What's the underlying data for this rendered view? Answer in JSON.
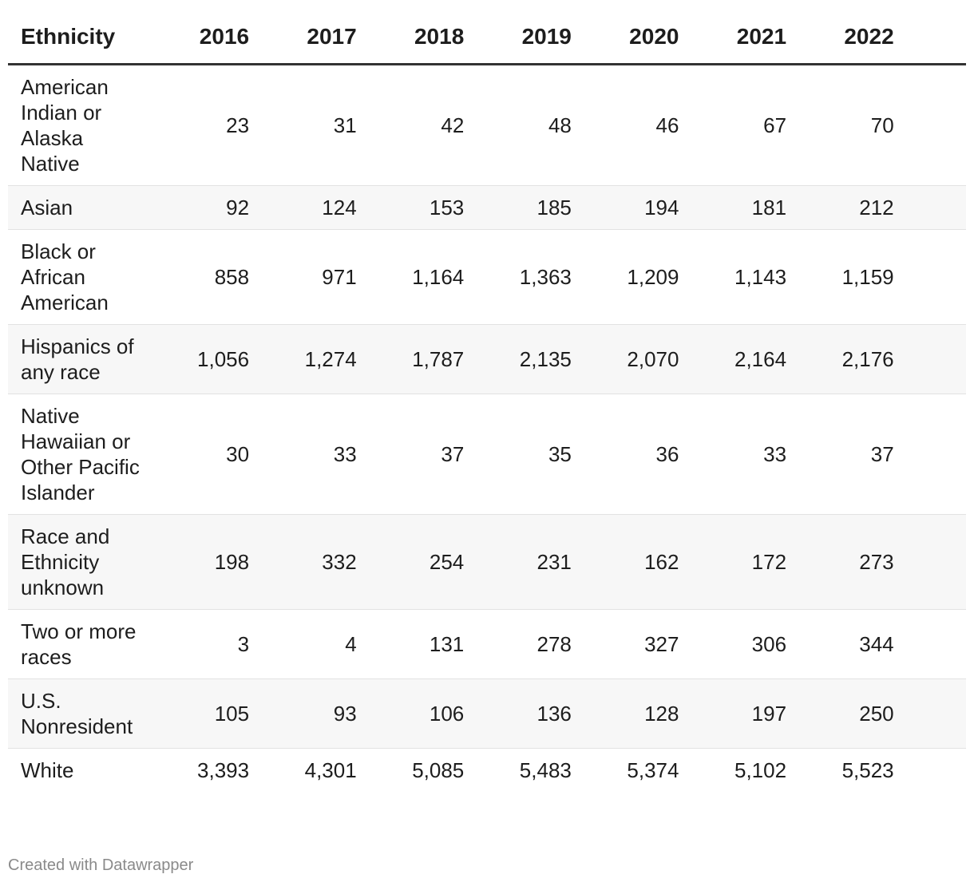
{
  "table": {
    "columns": [
      "Ethnicity",
      "2016",
      "2017",
      "2018",
      "2019",
      "2020",
      "2021",
      "2022"
    ],
    "rows": [
      [
        "American Indian or Alaska Native",
        "23",
        "31",
        "42",
        "48",
        "46",
        "67",
        "70"
      ],
      [
        "Asian",
        "92",
        "124",
        "153",
        "185",
        "194",
        "181",
        "212"
      ],
      [
        "Black or African American",
        "858",
        "971",
        "1,164",
        "1,363",
        "1,209",
        "1,143",
        "1,159"
      ],
      [
        "Hispanics of any race",
        "1,056",
        "1,274",
        "1,787",
        "2,135",
        "2,070",
        "2,164",
        "2,176"
      ],
      [
        "Native Hawaiian or Other Pacific Islander",
        "30",
        "33",
        "37",
        "35",
        "36",
        "33",
        "37"
      ],
      [
        "Race and Ethnicity unknown",
        "198",
        "332",
        "254",
        "231",
        "162",
        "172",
        "273"
      ],
      [
        "Two or more races",
        "3",
        "4",
        "131",
        "278",
        "327",
        "306",
        "344"
      ],
      [
        "U.S. Nonresident",
        "105",
        "93",
        "106",
        "136",
        "128",
        "197",
        "250"
      ],
      [
        "White",
        "3,393",
        "4,301",
        "5,085",
        "5,483",
        "5,374",
        "5,102",
        "5,523"
      ]
    ]
  },
  "footer": "Created with Datawrapper"
}
